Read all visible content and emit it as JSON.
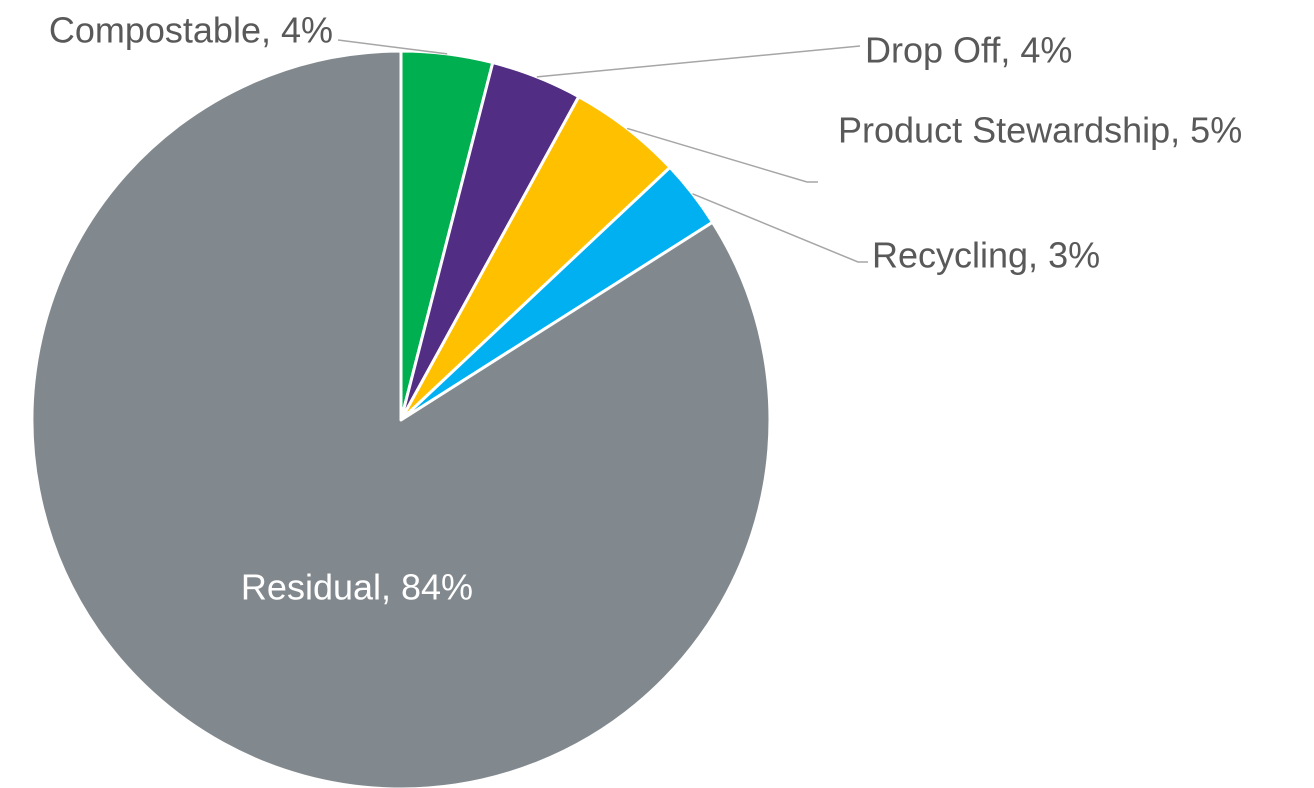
{
  "chart_data": {
    "type": "pie",
    "title": "",
    "start_angle_deg": 0,
    "direction": "clockwise",
    "slices": [
      {
        "name": "Compostable",
        "value": 4,
        "label": "Compostable, 4%",
        "color": "#00b050",
        "label_side": "left",
        "label_inside": false
      },
      {
        "name": "Drop Off",
        "value": 4,
        "label": "Drop Off, 4%",
        "color": "#512d83",
        "label_side": "right",
        "label_inside": false
      },
      {
        "name": "Product Stewardship",
        "value": 5,
        "label": "Product Stewardship, 5%",
        "color": "#ffc000",
        "label_side": "right",
        "label_inside": false
      },
      {
        "name": "Recycling",
        "value": 3,
        "label": "Recycling, 3%",
        "color": "#00b0f0",
        "label_side": "right",
        "label_inside": false
      },
      {
        "name": "Residual",
        "value": 84,
        "label": "Residual, 84%",
        "color": "#82898e",
        "label_side": "center",
        "label_inside": true
      }
    ],
    "legend": "none"
  }
}
